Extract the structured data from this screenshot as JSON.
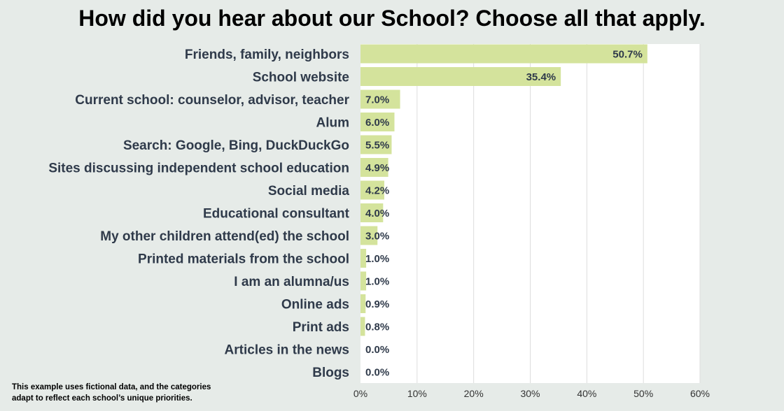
{
  "title": "How did you hear about our School? Choose all that apply.",
  "footnote_line1": "This example uses fictional data, and the categories",
  "footnote_line2": "adapt to reflect each school’s unique priorities.",
  "colors": {
    "bar": "#d4e39c",
    "plot_background": "#ffffff",
    "page_background": "#e6ebe8",
    "grid": "#dddddd",
    "label": "#2f3a4a"
  },
  "chart_data": {
    "type": "bar",
    "orientation": "horizontal",
    "title": "How did you hear about our School? Choose all that apply.",
    "categories": [
      "Friends, family, neighbors",
      "School website",
      "Current school: counselor, advisor, teacher",
      "Alum",
      "Search: Google, Bing, DuckDuckGo",
      "Sites discussing independent school education",
      "Social media",
      "Educational consultant",
      "My other children attend(ed) the school",
      "Printed materials from the school",
      "I am an alumna/us",
      "Online ads",
      "Print ads",
      "Articles in the news",
      "Blogs"
    ],
    "values": [
      50.7,
      35.4,
      7.0,
      6.0,
      5.5,
      4.9,
      4.2,
      4.0,
      3.0,
      1.0,
      1.0,
      0.9,
      0.8,
      0.0,
      0.0
    ],
    "value_labels": [
      "50.7%",
      "35.4%",
      "7.0%",
      "6.0%",
      "5.5%",
      "4.9%",
      "4.2%",
      "4.0%",
      "3.0%",
      "1.0%",
      "1.0%",
      "0.9%",
      "0.8%",
      "0.0%",
      "0.0%"
    ],
    "xlim": [
      0,
      60
    ],
    "xticks": [
      0,
      10,
      20,
      30,
      40,
      50,
      60
    ],
    "xtick_labels": [
      "0%",
      "10%",
      "20%",
      "30%",
      "40%",
      "50%",
      "60%"
    ],
    "xlabel": "",
    "ylabel": "",
    "grid": true,
    "legend": "none"
  }
}
